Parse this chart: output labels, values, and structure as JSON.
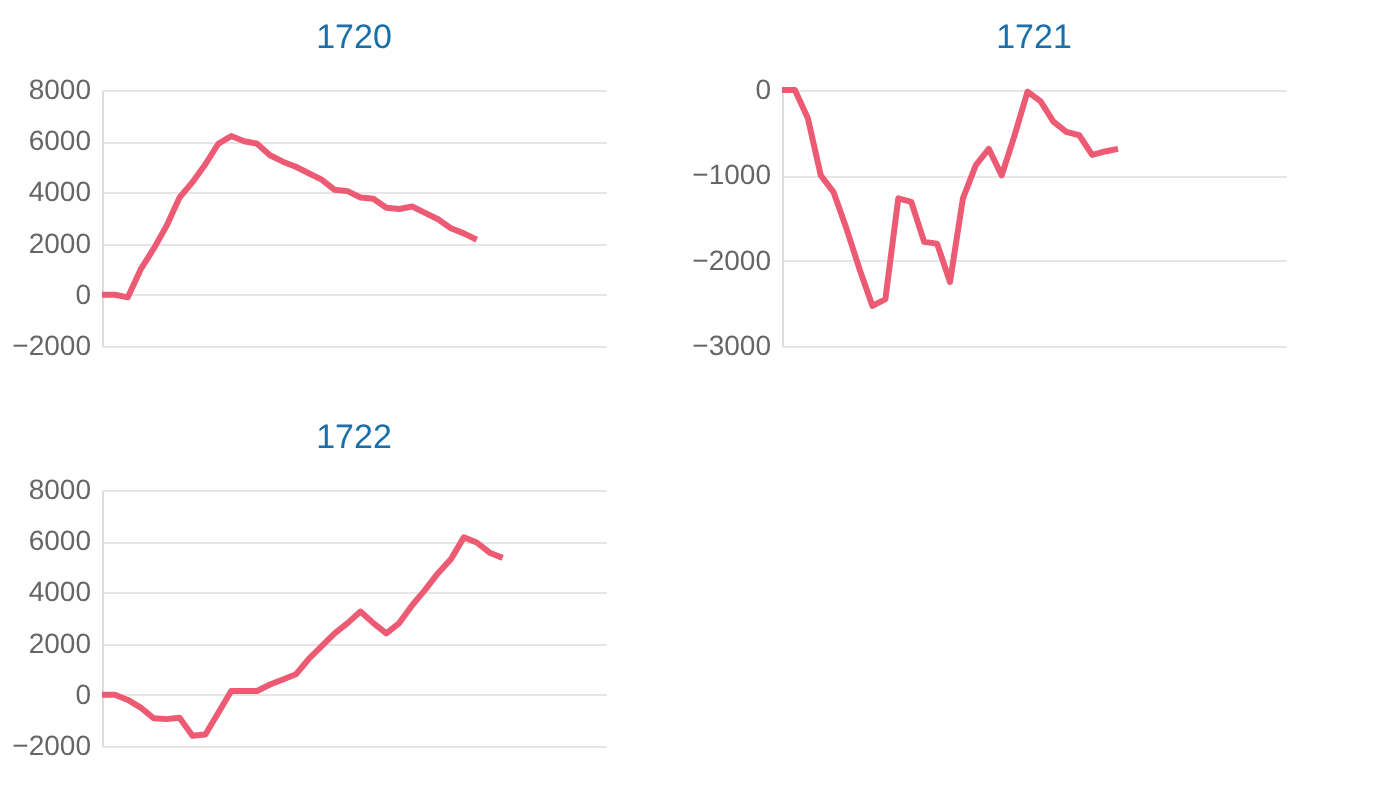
{
  "chart_data": [
    {
      "type": "line",
      "title": "1720",
      "categories": [
        null,
        null,
        null,
        null,
        null,
        null,
        null,
        null,
        null,
        null,
        null,
        null,
        null,
        null,
        null,
        null,
        null,
        null,
        null,
        null,
        null,
        null,
        null,
        null,
        null,
        null,
        null,
        null,
        null,
        null,
        null,
        null,
        null,
        null,
        null,
        null,
        null,
        null,
        null,
        null
      ],
      "series": [
        {
          "color": "#ec5a73",
          "values": [
            0,
            0,
            -100,
            1000,
            1800,
            2700,
            3800,
            4400,
            5100,
            5900,
            6200,
            6000,
            5900,
            5450,
            5200,
            5000,
            4750,
            4500,
            4100,
            4050,
            3800,
            3750,
            3400,
            3350,
            3450,
            3200,
            2950,
            2600,
            2400,
            2150,
            null,
            null,
            null,
            null,
            null,
            null,
            null,
            null,
            null,
            null
          ]
        }
      ],
      "ylim": [
        -2000,
        8000
      ],
      "yticks": [
        -2000,
        0,
        2000,
        4000,
        6000,
        8000
      ],
      "grid": "y",
      "tick_labels": "y"
    },
    {
      "type": "line",
      "title": "1721",
      "categories": [
        null,
        null,
        null,
        null,
        null,
        null,
        null,
        null,
        null,
        null,
        null,
        null,
        null,
        null,
        null,
        null,
        null,
        null,
        null,
        null,
        null,
        null,
        null,
        null,
        null,
        null,
        null,
        null,
        null,
        null,
        null,
        null,
        null,
        null,
        null,
        null,
        null,
        null,
        null,
        null
      ],
      "series": [
        {
          "color": "#ec5a73",
          "values": [
            0,
            0,
            -330,
            -1000,
            -1200,
            -1630,
            -2100,
            -2530,
            -2450,
            -1270,
            -1310,
            -1780,
            -1800,
            -2250,
            -1270,
            -880,
            -690,
            -1000,
            -530,
            -20,
            -130,
            -370,
            -490,
            -530,
            -760,
            -720,
            -690,
            null,
            null,
            null,
            null,
            null,
            null,
            null,
            null,
            null,
            null,
            null,
            null,
            null
          ]
        }
      ],
      "ylim": [
        -3000,
        0
      ],
      "yticks": [
        -3000,
        -2000,
        -1000,
        0
      ],
      "grid": "y",
      "tick_labels": "y"
    },
    {
      "type": "line",
      "title": "1722",
      "categories": [
        null,
        null,
        null,
        null,
        null,
        null,
        null,
        null,
        null,
        null,
        null,
        null,
        null,
        null,
        null,
        null,
        null,
        null,
        null,
        null,
        null,
        null,
        null,
        null,
        null,
        null,
        null,
        null,
        null,
        null,
        null,
        null,
        null,
        null,
        null,
        null,
        null,
        null,
        null,
        null
      ],
      "series": [
        {
          "color": "#ec5a73",
          "values": [
            0,
            0,
            -200,
            -500,
            -915,
            -950,
            -900,
            -1600,
            -1550,
            -700,
            150,
            150,
            150,
            400,
            600,
            800,
            1400,
            1900,
            2400,
            2800,
            3250,
            2800,
            2400,
            2800,
            3500,
            4100,
            4750,
            5300,
            6150,
            5950,
            5550,
            5350,
            null,
            null,
            null,
            null,
            null,
            null,
            null,
            null
          ]
        }
      ],
      "ylim": [
        -2000,
        8000
      ],
      "yticks": [
        -2000,
        0,
        2000,
        4000,
        6000,
        8000
      ],
      "grid": "y",
      "tick_labels": "y"
    }
  ]
}
